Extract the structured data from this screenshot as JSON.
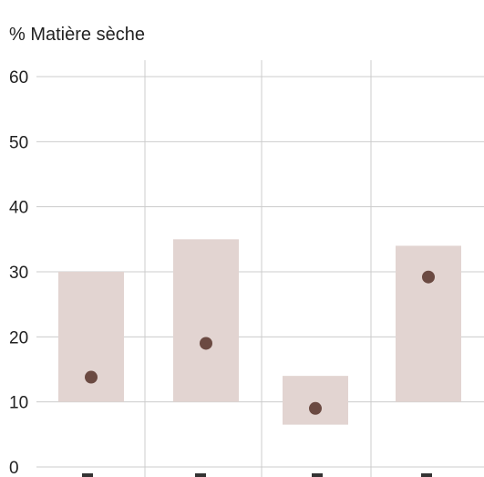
{
  "chart_data": {
    "type": "range-dot",
    "ylabel": "% Matière sèche",
    "ylim": [
      0,
      60
    ],
    "yticks": [
      0,
      10,
      20,
      30,
      40,
      50,
      60
    ],
    "grid": true,
    "categories": [
      "",
      "",
      "",
      ""
    ],
    "series": [
      {
        "range_low": [
          10,
          10,
          6.5,
          10
        ],
        "range_high": [
          30,
          35,
          14,
          34
        ],
        "values": [
          13.8,
          19,
          9,
          29.2
        ]
      }
    ],
    "colors": {
      "range": "#e2d4d1",
      "point": "#6b4a42",
      "grid": "#cccccc"
    }
  }
}
